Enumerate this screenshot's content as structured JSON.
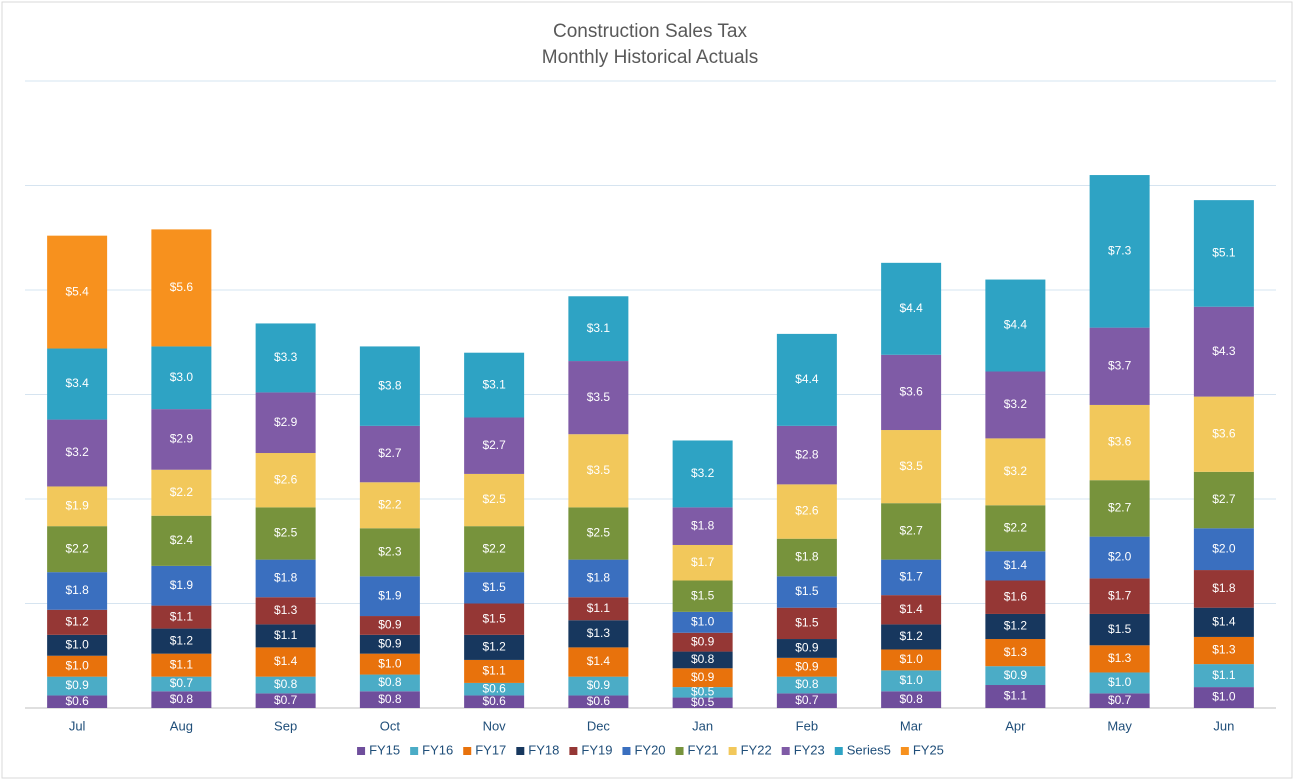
{
  "chart_data": {
    "type": "stacked_bar",
    "title": "Construction Sales Tax",
    "subtitle": "Monthly Historical Actuals",
    "categories": [
      "Jul",
      "Aug",
      "Sep",
      "Oct",
      "Nov",
      "Dec",
      "Jan",
      "Feb",
      "Mar",
      "Apr",
      "May",
      "Jun"
    ],
    "ylim": [
      0,
      30
    ],
    "yticks": [
      0,
      5,
      10,
      15,
      20,
      25,
      30
    ],
    "grid": true,
    "legend": "bottom",
    "series": [
      {
        "name": "FY15",
        "color": "#6f4e9c",
        "values": [
          0.6,
          0.8,
          0.7,
          0.8,
          0.6,
          0.6,
          0.5,
          0.7,
          0.8,
          1.1,
          0.7,
          1.0
        ],
        "value_labels": [
          "$0.6",
          "$0.8",
          "$0.7",
          "$0.8",
          "$0.6",
          "$0.6",
          "$0.5",
          "$0.7",
          "$0.8",
          "$1.1",
          "$0.7",
          "$1.0"
        ]
      },
      {
        "name": "FY16",
        "color": "#4bacc6",
        "values": [
          0.9,
          0.7,
          0.8,
          0.8,
          0.6,
          0.9,
          0.5,
          0.8,
          1.0,
          0.9,
          1.0,
          1.1
        ],
        "value_labels": [
          "$0.9",
          "$0.7",
          "$0.8",
          "$0.8",
          "$0.6",
          "$0.9",
          "$0.5",
          "$0.8",
          "$1.0",
          "$0.9",
          "$1.0",
          "$1.1"
        ]
      },
      {
        "name": "FY17",
        "color": "#e8720c",
        "values": [
          1.0,
          1.1,
          1.4,
          1.0,
          1.1,
          1.4,
          0.9,
          0.9,
          1.0,
          1.3,
          1.3,
          1.3
        ],
        "value_labels": [
          "$1.0",
          "$1.1",
          "$1.4",
          "$1.0",
          "$1.1",
          "$1.4",
          "$0.9",
          "$0.9",
          "$1.0",
          "$1.3",
          "$1.3",
          "$1.3"
        ]
      },
      {
        "name": "FY18",
        "color": "#17375e",
        "values": [
          1.0,
          1.2,
          1.1,
          0.9,
          1.2,
          1.3,
          0.8,
          0.9,
          1.2,
          1.2,
          1.5,
          1.4
        ],
        "value_labels": [
          "$1.0",
          "$1.2",
          "$1.1",
          "$0.9",
          "$1.2",
          "$1.3",
          "$0.8",
          "$0.9",
          "$1.2",
          "$1.2",
          "$1.5",
          "$1.4"
        ]
      },
      {
        "name": "FY19",
        "color": "#953735",
        "values": [
          1.2,
          1.1,
          1.3,
          0.9,
          1.5,
          1.1,
          0.9,
          1.5,
          1.4,
          1.6,
          1.7,
          1.8
        ],
        "value_labels": [
          "$1.2",
          "$1.1",
          "$1.3",
          "$0.9",
          "$1.5",
          "$1.1",
          "$0.9",
          "$1.5",
          "$1.4",
          "$1.6",
          "$1.7",
          "$1.8"
        ]
      },
      {
        "name": "FY20",
        "color": "#3a6fbf",
        "values": [
          1.8,
          1.9,
          1.8,
          1.9,
          1.5,
          1.8,
          1.0,
          1.5,
          1.7,
          1.4,
          2.0,
          2.0
        ],
        "value_labels": [
          "$1.8",
          "$1.9",
          "$1.8",
          "$1.9",
          "$1.5",
          "$1.8",
          "$1.0",
          "$1.5",
          "$1.7",
          "$1.4",
          "$2.0",
          "$2.0"
        ]
      },
      {
        "name": "FY21",
        "color": "#77933c",
        "values": [
          2.2,
          2.4,
          2.5,
          2.3,
          2.2,
          2.5,
          1.5,
          1.8,
          2.7,
          2.2,
          2.7,
          2.7
        ],
        "value_labels": [
          "$2.2",
          "$2.4",
          "$2.5",
          "$2.3",
          "$2.2",
          "$2.5",
          "$1.5",
          "$1.8",
          "$2.7",
          "$2.2",
          "$2.7",
          "$2.7"
        ]
      },
      {
        "name": "FY22",
        "color": "#f2c85b",
        "values": [
          1.9,
          2.2,
          2.6,
          2.2,
          2.5,
          3.5,
          1.7,
          2.6,
          3.5,
          3.2,
          3.6,
          3.6
        ],
        "value_labels": [
          "$1.9",
          "$2.2",
          "$2.6",
          "$2.2",
          "$2.5",
          "$3.5",
          "$1.7",
          "$2.6",
          "$3.5",
          "$3.2",
          "$3.6",
          "$3.6"
        ]
      },
      {
        "name": "FY23",
        "color": "#7f5ba6",
        "values": [
          3.2,
          2.9,
          2.9,
          2.7,
          2.7,
          3.5,
          1.8,
          2.8,
          3.6,
          3.2,
          3.7,
          4.3
        ],
        "value_labels": [
          "$3.2",
          "$2.9",
          "$2.9",
          "$2.7",
          "$2.7",
          "$3.5",
          "$1.8",
          "$2.8",
          "$3.6",
          "$3.2",
          "$3.7",
          "$4.3"
        ]
      },
      {
        "name": "Series5",
        "color": "#2ea3c4",
        "values": [
          3.4,
          3.0,
          3.3,
          3.8,
          3.1,
          3.1,
          3.2,
          4.4,
          4.4,
          4.4,
          7.3,
          5.1
        ],
        "value_labels": [
          "$3.4",
          "$3.0",
          "$3.3",
          "$3.8",
          "$3.1",
          "$3.1",
          "$3.2",
          "$4.4",
          "$4.4",
          "$4.4",
          "$7.3",
          "$5.1"
        ]
      },
      {
        "name": "FY25",
        "color": "#f7911e",
        "values": [
          5.4,
          5.6,
          null,
          null,
          null,
          null,
          null,
          null,
          null,
          null,
          null,
          null
        ],
        "value_labels": [
          "$5.4",
          "$5.6",
          null,
          null,
          null,
          null,
          null,
          null,
          null,
          null,
          null,
          null
        ]
      }
    ]
  }
}
